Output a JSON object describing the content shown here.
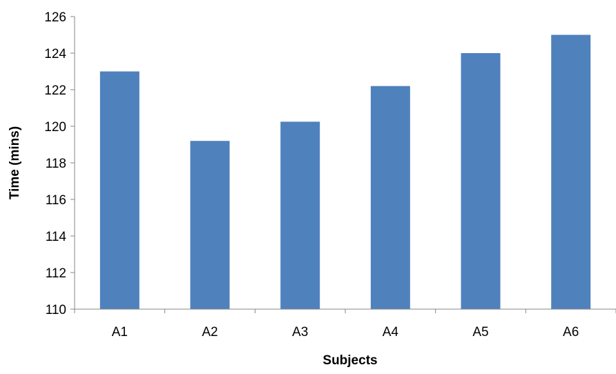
{
  "chart_data": {
    "type": "bar",
    "categories": [
      "A1",
      "A2",
      "A3",
      "A4",
      "A5",
      "A6"
    ],
    "series": [
      {
        "values": [
          123.0,
          119.2,
          120.25,
          122.2,
          124.0,
          125.0
        ]
      }
    ],
    "title": "",
    "xlabel": "Subjects",
    "ylabel": "Time (mins)",
    "ylim": [
      110,
      126
    ],
    "yticks": [
      110,
      112,
      114,
      116,
      118,
      120,
      122,
      124,
      126
    ],
    "grid": false,
    "legend": "none",
    "bar_color": "#4F81BD",
    "axis_color": "#868686"
  }
}
